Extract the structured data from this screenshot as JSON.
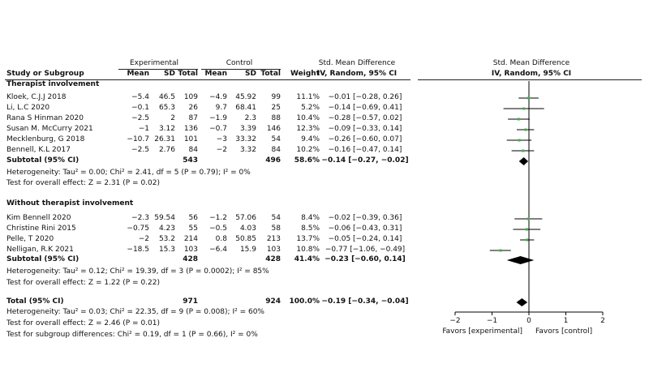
{
  "header": {
    "group_experimental": "Experimental",
    "group_control": "Control",
    "col_study": "Study or Subgroup",
    "col_mean": "Mean",
    "col_sd": "SD",
    "col_total": "Total",
    "col_weight": "Weight",
    "smd_title": "Std. Mean Difference",
    "smd_subtitle": "IV, Random, 95% CI",
    "plot_title": "Std. Mean Difference",
    "plot_subtitle": "IV, Random, 95% CI"
  },
  "groups": [
    {
      "title": "Therapist involvement",
      "studies": [
        {
          "name": "Kloek, C.J.J 2018",
          "e_mean": "−5.4",
          "e_sd": "46.5",
          "e_total": "109",
          "c_mean": "−4.9",
          "c_sd": "45.92",
          "c_total": "99",
          "weight": "11.1%",
          "ci": "−0.01 [−0.28, 0.26]"
        },
        {
          "name": "Li, L.C 2020",
          "e_mean": "−0.1",
          "e_sd": "65.3",
          "e_total": "26",
          "c_mean": "9.7",
          "c_sd": "68.41",
          "c_total": "25",
          "weight": "5.2%",
          "ci": "−0.14 [−0.69, 0.41]"
        },
        {
          "name": "Rana S Hinman 2020",
          "e_mean": "−2.5",
          "e_sd": "2",
          "e_total": "87",
          "c_mean": "−1.9",
          "c_sd": "2.3",
          "c_total": "88",
          "weight": "10.4%",
          "ci": "−0.28 [−0.57, 0.02]"
        },
        {
          "name": "Susan M. McCurry 2021",
          "e_mean": "−1",
          "e_sd": "3.12",
          "e_total": "136",
          "c_mean": "−0.7",
          "c_sd": "3.39",
          "c_total": "146",
          "weight": "12.3%",
          "ci": "−0.09 [−0.33, 0.14]"
        },
        {
          "name": "Mecklenburg, G 2018",
          "e_mean": "−10.7",
          "e_sd": "26.31",
          "e_total": "101",
          "c_mean": "−3",
          "c_sd": "33.32",
          "c_total": "54",
          "weight": "9.4%",
          "ci": "−0.26 [−0.60, 0.07]"
        },
        {
          "name": "Bennell, K.L 2017",
          "e_mean": "−2.5",
          "e_sd": "2.76",
          "e_total": "84",
          "c_mean": "−2",
          "c_sd": "3.32",
          "c_total": "84",
          "weight": "10.2%",
          "ci": "−0.16 [−0.47, 0.14]"
        }
      ],
      "subtotal": {
        "label": "Subtotal (95% CI)",
        "e_total": "543",
        "c_total": "496",
        "weight": "58.6%",
        "ci": "−0.14 [−0.27, −0.02]"
      },
      "heterogeneity": "Heterogeneity: Tau² = 0.00; Chi² = 2.41, df = 5 (P = 0.79); I² = 0%",
      "overall": "Test for overall effect: Z = 2.31 (P = 0.02)"
    },
    {
      "title": "Without therapist involvement",
      "studies": [
        {
          "name": "Kim Bennell 2020",
          "e_mean": "−2.3",
          "e_sd": "59.54",
          "e_total": "56",
          "c_mean": "−1.2",
          "c_sd": "57.06",
          "c_total": "54",
          "weight": "8.4%",
          "ci": "−0.02 [−0.39, 0.36]"
        },
        {
          "name": "Christine Rini 2015",
          "e_mean": "−0.75",
          "e_sd": "4.23",
          "e_total": "55",
          "c_mean": "−0.5",
          "c_sd": "4.03",
          "c_total": "58",
          "weight": "8.5%",
          "ci": "−0.06 [−0.43, 0.31]"
        },
        {
          "name": "Pelle, T 2020",
          "e_mean": "−2",
          "e_sd": "53.2",
          "e_total": "214",
          "c_mean": "0.8",
          "c_sd": "50.85",
          "c_total": "213",
          "weight": "13.7%",
          "ci": "−0.05 [−0.24, 0.14]"
        },
        {
          "name": "Nelligan, R.K 2021",
          "e_mean": "−18.5",
          "e_sd": "15.3",
          "e_total": "103",
          "c_mean": "−6.4",
          "c_sd": "15.9",
          "c_total": "103",
          "weight": "10.8%",
          "ci": "−0.77 [−1.06, −0.49]"
        }
      ],
      "subtotal": {
        "label": "Subtotal (95% CI)",
        "e_total": "428",
        "c_total": "428",
        "weight": "41.4%",
        "ci": "−0.23 [−0.60, 0.14]"
      },
      "heterogeneity": "Heterogeneity: Tau² = 0.12; Chi² = 19.39, df = 3 (P = 0.0002); I² = 85%",
      "overall": "Test for overall effect: Z = 1.22 (P = 0.22)"
    }
  ],
  "total": {
    "label": "Total (95% CI)",
    "e_total": "971",
    "c_total": "924",
    "weight": "100.0%",
    "ci": "−0.19 [−0.34, −0.04]",
    "heterogeneity": "Heterogeneity: Tau² = 0.03; Chi² = 22.35, df = 9 (P = 0.008); I² = 60%",
    "overall": "Test for overall effect: Z = 2.46 (P = 0.01)",
    "subgroup": "Test for subgroup differences: Chi² = 0.19, df = 1 (P = 0.66), I² = 0%"
  },
  "chart_data": {
    "type": "forest",
    "xlim": [
      -2,
      2
    ],
    "xticks": [
      -2,
      -1,
      0,
      1,
      2
    ],
    "xtick_labels": [
      "−2",
      "−1",
      "0",
      "1",
      "2"
    ],
    "favours_left": "Favors   [experimental]",
    "favours_right": "Favors   [control]",
    "marker_color": "#3cb043",
    "diamond_color": "#000000",
    "studies": [
      {
        "name": "Kloek, C.J.J 2018",
        "est": -0.01,
        "lo": -0.28,
        "hi": 0.26
      },
      {
        "name": "Li, L.C 2020",
        "est": -0.14,
        "lo": -0.69,
        "hi": 0.41
      },
      {
        "name": "Rana S Hinman 2020",
        "est": -0.28,
        "lo": -0.57,
        "hi": 0.02
      },
      {
        "name": "Susan M. McCurry 2021",
        "est": -0.09,
        "lo": -0.33,
        "hi": 0.14
      },
      {
        "name": "Mecklenburg, G 2018",
        "est": -0.26,
        "lo": -0.6,
        "hi": 0.07
      },
      {
        "name": "Bennell, K.L 2017",
        "est": -0.16,
        "lo": -0.47,
        "hi": 0.14
      },
      {
        "name": "Kim Bennell 2020",
        "est": -0.02,
        "lo": -0.39,
        "hi": 0.36
      },
      {
        "name": "Christine Rini 2015",
        "est": -0.06,
        "lo": -0.43,
        "hi": 0.31
      },
      {
        "name": "Pelle, T 2020",
        "est": -0.05,
        "lo": -0.24,
        "hi": 0.14
      },
      {
        "name": "Nelligan, R.K 2021",
        "est": -0.77,
        "lo": -1.06,
        "hi": -0.49
      }
    ],
    "pooled": [
      {
        "name": "Subtotal Therapist involvement",
        "est": -0.14,
        "lo": -0.27,
        "hi": -0.02
      },
      {
        "name": "Subtotal Without therapist involvement",
        "est": -0.23,
        "lo": -0.6,
        "hi": 0.14
      },
      {
        "name": "Total",
        "est": -0.19,
        "lo": -0.34,
        "hi": -0.04
      }
    ]
  }
}
